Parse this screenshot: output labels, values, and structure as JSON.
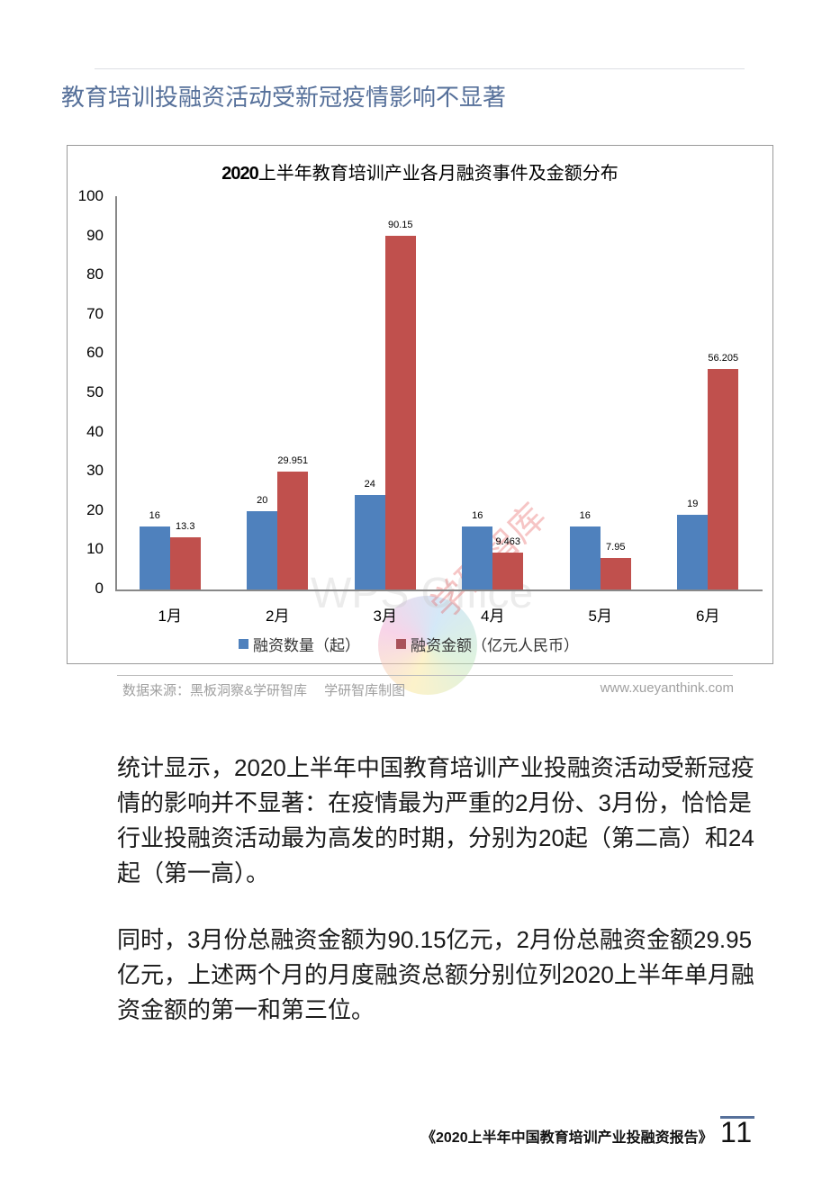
{
  "section_title": "教育培训投融资活动受新冠疫情影响不显著",
  "chart": {
    "title_bold": "2020",
    "title_rest": "上半年教育培训产业各月融资事件及金额分布",
    "y_ticks": [
      "100",
      "90",
      "80",
      "70",
      "60",
      "50",
      "40",
      "30",
      "20",
      "10",
      "0"
    ],
    "x_labels": [
      "1月",
      "2月",
      "3月",
      "4月",
      "5月",
      "6月"
    ],
    "legend": [
      {
        "label": "融资数量（起）",
        "color": "#4f81bd"
      },
      {
        "label": "融资金额（亿元人民币）",
        "color": "#c0504d"
      }
    ],
    "count_labels": [
      "16",
      "20",
      "24",
      "16",
      "16",
      "19"
    ],
    "amount_labels": [
      "13.3",
      "29.951",
      "90.15",
      "9.463",
      "7.95",
      "56.205"
    ],
    "watermark_wps": "WPS Office",
    "watermark_xy": "学研智库"
  },
  "chart_data": {
    "type": "bar",
    "title": "2020上半年教育培训产业各月融资事件及金额分布",
    "categories": [
      "1月",
      "2月",
      "3月",
      "4月",
      "5月",
      "6月"
    ],
    "series": [
      {
        "name": "融资数量（起）",
        "color": "#4f81bd",
        "values": [
          16,
          20,
          24,
          16,
          16,
          19
        ]
      },
      {
        "name": "融资金额（亿元人民币）",
        "color": "#c0504d",
        "values": [
          13.3,
          29.951,
          90.15,
          9.463,
          7.95,
          56.205
        ]
      }
    ],
    "xlabel": "",
    "ylabel": "",
    "ylim": [
      0,
      100
    ],
    "yticks": [
      0,
      10,
      20,
      30,
      40,
      50,
      60,
      70,
      80,
      90,
      100
    ],
    "grid": false,
    "legend_position": "bottom",
    "data_labels": true
  },
  "source": {
    "left": "数据来源：黑板洞察&学研智库　 学研智库制图",
    "right": "www.xueyanthink.com"
  },
  "paragraphs": [
    "统计显示，2020上半年中国教育培训产业投融资活动受新冠疫情的影响并不显著：在疫情最为严重的2月份、3月份，恰恰是行业投融资活动最为高发的时期，分别为20起（第二高）和24起（第一高）。",
    "同时，3月份总融资金额为90.15亿元，2月份总融资金额29.95亿元，上述两个月的月度融资总额分别位列2020上半年单月融资金额的第一和第三位。"
  ],
  "footer": {
    "report_title": "《2020上半年中国教育培训产业投融资报告》",
    "page_number": "11"
  }
}
